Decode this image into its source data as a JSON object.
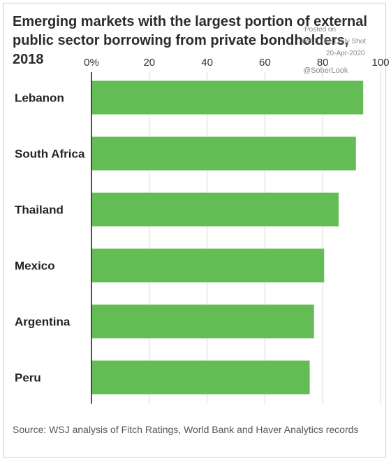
{
  "chart_data": {
    "type": "bar",
    "orientation": "horizontal",
    "title": "Emerging markets with the largest portion of external public sector borrowing from private bondholders, 2018",
    "categories": [
      "Lebanon",
      "South Africa",
      "Thailand",
      "Mexico",
      "Argentina",
      "Peru"
    ],
    "values": [
      94,
      91.5,
      85.5,
      80.5,
      77,
      75.5
    ],
    "x_ticks": [
      "0%",
      "20",
      "40",
      "60",
      "80",
      "100"
    ],
    "xlim": [
      0,
      100
    ],
    "unit": "%",
    "bar_color": "#64bd54",
    "grid": true,
    "grid_color": "#d9d9d9",
    "xlabel": "",
    "ylabel": "",
    "source": "Source: WSJ analysis of Fitch Ratings, World Bank and Haver Analytics records"
  },
  "watermark": {
    "line1": "Posted on",
    "line2": "WSJ: The Daily Shot",
    "line3": "20-Apr-2020",
    "line4": "@SoberLook"
  }
}
